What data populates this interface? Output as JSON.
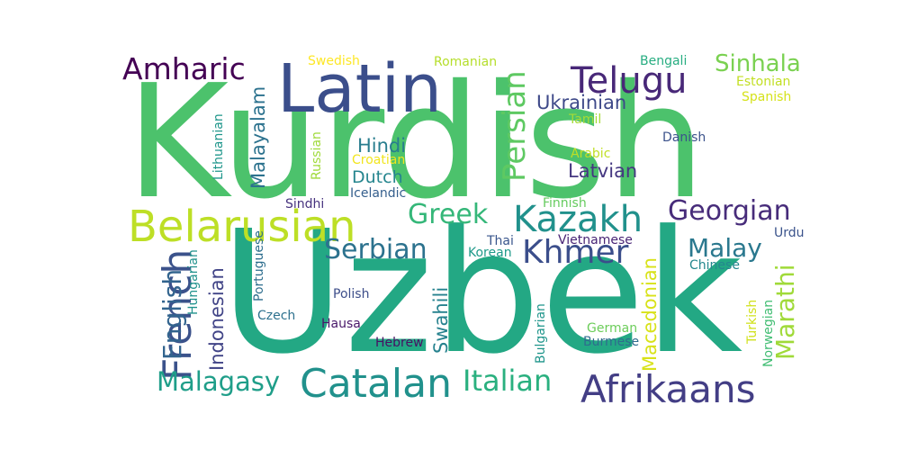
{
  "palette": {
    "green": "#4cc26c",
    "teal": "#23a884",
    "navy": "#3b4e8b",
    "purple": "#482878",
    "lime": "#bddf26",
    "cyan": "#2a788e",
    "blue": "#2e6d8e",
    "yellow": "#fde725"
  },
  "words": [
    {
      "text": "Kurdish",
      "color": "#4cc26c"
    },
    {
      "text": "Uzbek",
      "color": "#23a884"
    },
    {
      "text": "Latin",
      "color": "#3b4e8b"
    },
    {
      "text": "Belarusian",
      "color": "#bddf26"
    },
    {
      "text": "Telugu",
      "color": "#482878"
    },
    {
      "text": "Afrikaans",
      "color": "#433e85"
    },
    {
      "text": "Catalan",
      "color": "#21918c"
    },
    {
      "text": "Kazakh",
      "color": "#21918c"
    },
    {
      "text": "Khmer",
      "color": "#3b4e8b"
    },
    {
      "text": "French",
      "color": "#3b528b"
    },
    {
      "text": "Amharic",
      "color": "#440154"
    },
    {
      "text": "Sinhala",
      "color": "#7ad151"
    },
    {
      "text": "Georgian",
      "color": "#472c7a"
    },
    {
      "text": "Persian",
      "color": "#5ec962"
    },
    {
      "text": "Greek",
      "color": "#35b779"
    },
    {
      "text": "Serbian",
      "color": "#2c728e"
    },
    {
      "text": "Malay",
      "color": "#2a788e"
    },
    {
      "text": "Marathi",
      "color": "#a0da39"
    },
    {
      "text": "English",
      "color": "#32648e"
    },
    {
      "text": "Italian",
      "color": "#2ab07f"
    },
    {
      "text": "Malagasy",
      "color": "#1f9e89"
    },
    {
      "text": "Malayalam",
      "color": "#2c728e"
    },
    {
      "text": "Ukrainian",
      "color": "#3e4989"
    },
    {
      "text": "Hindi",
      "color": "#287d8e"
    },
    {
      "text": "Dutch",
      "color": "#25858e"
    },
    {
      "text": "Latvian",
      "color": "#453781"
    },
    {
      "text": "Indonesian",
      "color": "#414487"
    },
    {
      "text": "Swahili",
      "color": "#26828e"
    },
    {
      "text": "Macedonian",
      "color": "#d8e219"
    },
    {
      "text": "Swedish",
      "color": "#fde725"
    },
    {
      "text": "Romanian",
      "color": "#b5de2b"
    },
    {
      "text": "Bengali",
      "color": "#27ad81"
    },
    {
      "text": "Estonian",
      "color": "#c2df23"
    },
    {
      "text": "Spanish",
      "color": "#d5e21a"
    },
    {
      "text": "Danish",
      "color": "#3b528b"
    },
    {
      "text": "Tamil",
      "color": "#a5db36"
    },
    {
      "text": "Arabic",
      "color": "#c0df25"
    },
    {
      "text": "Lithuanian",
      "color": "#1f968b"
    },
    {
      "text": "Russian",
      "color": "#9fda3a"
    },
    {
      "text": "Croatian",
      "color": "#f1e51d"
    },
    {
      "text": "Icelandic",
      "color": "#355f8d"
    },
    {
      "text": "Finnish",
      "color": "#65cb5e"
    },
    {
      "text": "Sindhi",
      "color": "#46327e"
    },
    {
      "text": "Thai",
      "color": "#39558c"
    },
    {
      "text": "Vietnamese",
      "color": "#482475"
    },
    {
      "text": "Urdu",
      "color": "#3a538b"
    },
    {
      "text": "Korean",
      "color": "#1f9a8a"
    },
    {
      "text": "Chinese",
      "color": "#24878e"
    },
    {
      "text": "Hungarian",
      "color": "#20928c"
    },
    {
      "text": "Portuguese",
      "color": "#2e6e8e"
    },
    {
      "text": "Polish",
      "color": "#3d4e8a"
    },
    {
      "text": "Czech",
      "color": "#2d718e"
    },
    {
      "text": "Hausa",
      "color": "#481769"
    },
    {
      "text": "Hebrew",
      "color": "#471164"
    },
    {
      "text": "Bulgarian",
      "color": "#1f958b"
    },
    {
      "text": "German",
      "color": "#6ccd5a"
    },
    {
      "text": "Burmese",
      "color": "#2f6c8e"
    },
    {
      "text": "Turkish",
      "color": "#d0e11c"
    },
    {
      "text": "Norwegian",
      "color": "#40bd72"
    }
  ]
}
